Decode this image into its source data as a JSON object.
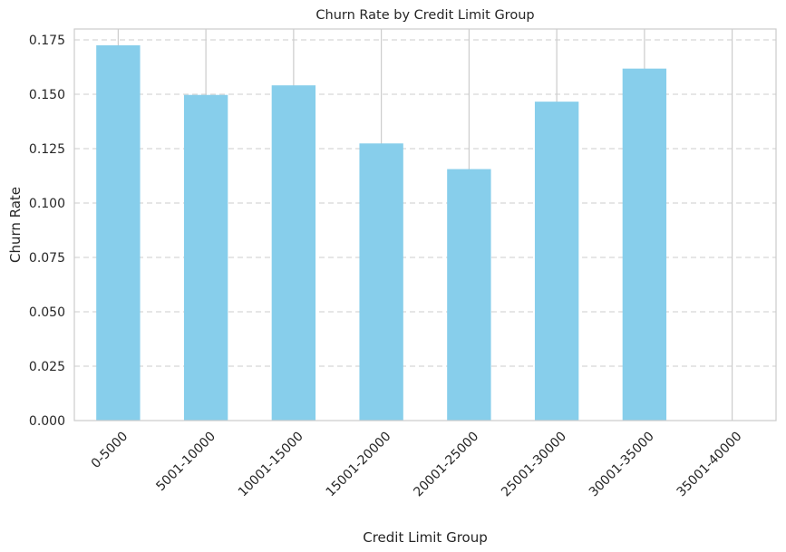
{
  "chart_data": {
    "type": "bar",
    "title": "Churn Rate by Credit Limit Group",
    "xlabel": "Credit Limit Group",
    "ylabel": "Churn Rate",
    "categories": [
      "0-5000",
      "5001-10000",
      "10001-15000",
      "15001-20000",
      "20001-25000",
      "25001-30000",
      "30001-35000",
      "35001-40000"
    ],
    "values": [
      0.1725,
      0.1497,
      0.1541,
      0.1274,
      0.1156,
      0.1466,
      0.1618,
      0
    ],
    "ylim": [
      0,
      0.18
    ],
    "yticks": [
      0.0,
      0.025,
      0.05,
      0.075,
      0.1,
      0.125,
      0.15,
      0.175
    ],
    "ytick_labels": [
      "0.000",
      "0.025",
      "0.050",
      "0.075",
      "0.100",
      "0.125",
      "0.150",
      "0.175"
    ],
    "grid": "y-dashed, x-solid",
    "colors": {
      "bar": "#87ceeb",
      "grid": "#cccccc",
      "axis": "#cccccc",
      "text": "#262626"
    }
  }
}
